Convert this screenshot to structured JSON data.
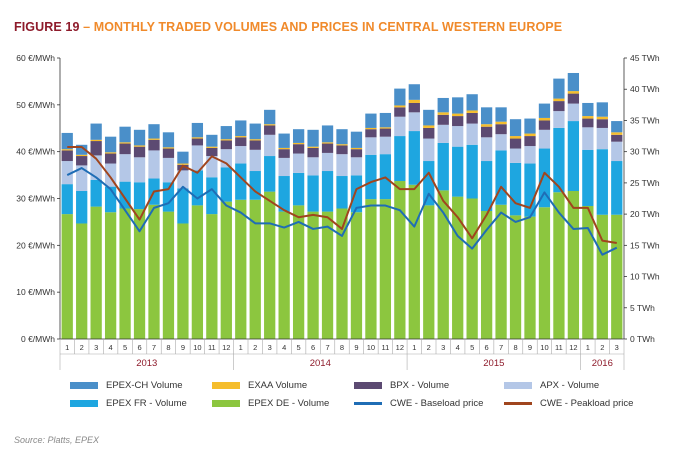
{
  "title": {
    "figure_label": "FIGURE 19",
    "separator": " – ",
    "text": "MONTHLY TRADED VOLUMES AND PRICES IN CENTRAL WESTERN EUROPE"
  },
  "source": "Source: Platts, EPEX",
  "chart_data": {
    "type": "bar",
    "stacked": true,
    "title": "",
    "months": [
      "1",
      "2",
      "3",
      "4",
      "5",
      "6",
      "7",
      "8",
      "9",
      "10",
      "11",
      "12",
      "1",
      "2",
      "3",
      "4",
      "5",
      "6",
      "7",
      "8",
      "9",
      "10",
      "11",
      "12",
      "1",
      "2",
      "3",
      "4",
      "5",
      "6",
      "7",
      "8",
      "9",
      "10",
      "11",
      "12",
      "1",
      "2",
      "3"
    ],
    "years": [
      {
        "label": "2013",
        "start": 0,
        "count": 12
      },
      {
        "label": "2014",
        "start": 12,
        "count": 12
      },
      {
        "label": "2015",
        "start": 24,
        "count": 12
      },
      {
        "label": "2016",
        "start": 36,
        "count": 3
      }
    ],
    "left_axis": {
      "min": 0,
      "max": 60,
      "step": 10,
      "tick_labels": [
        "0 €/MWh",
        "10 €/MWh",
        "20 €/MWh",
        "30 €/MWh",
        "40 €/MWh",
        "50 €/MWh",
        "60 €/MWh"
      ]
    },
    "right_axis": {
      "min": 0,
      "max": 45,
      "step": 5,
      "tick_labels": [
        "0 TWh",
        "5 TWh",
        "10 TWh",
        "15 TWh",
        "20 TWh",
        "25 TWh",
        "30 TWh",
        "35 TWh",
        "40 TWh",
        "45 TWh"
      ]
    },
    "grid": false,
    "legend_position": "bottom",
    "volume_series": [
      {
        "name": "EPEX DE - Volume",
        "color": "#8cc63f",
        "values": [
          20,
          18.5,
          21.2,
          20.3,
          20.9,
          20.8,
          21.5,
          20.4,
          18.5,
          21.4,
          20,
          22,
          22.3,
          22.3,
          23.6,
          20.4,
          21.4,
          20.4,
          20.4,
          20.9,
          20.3,
          22.4,
          22.4,
          25.3,
          24.7,
          21.4,
          23.8,
          22.8,
          22.5,
          20.5,
          21.5,
          19.8,
          19.6,
          21.1,
          23.5,
          23.7,
          21.3,
          19.9,
          19.9
        ]
      },
      {
        "name": "EPEX FR - Volume",
        "color": "#1ea6e0",
        "values": [
          4.8,
          5.2,
          4.3,
          4.1,
          4.3,
          4.3,
          4.2,
          4.7,
          5.6,
          5.6,
          5.9,
          5.5,
          5.8,
          4.6,
          5.7,
          5.7,
          5.2,
          5.8,
          6.5,
          5.2,
          5.9,
          7.1,
          7.2,
          7.2,
          8.6,
          7.1,
          7.6,
          8,
          8.6,
          8,
          8.7,
          8.4,
          8.5,
          9.4,
          10.3,
          11.2,
          9,
          10.5,
          8.6
        ]
      },
      {
        "name": "APX - Volume",
        "color": "#b4c7e7",
        "values": [
          3.7,
          4.1,
          3.9,
          3.7,
          4.4,
          4,
          4.5,
          3.9,
          2.9,
          4,
          3.4,
          2.9,
          2.8,
          3.4,
          3.4,
          2.9,
          3.1,
          2.9,
          2.9,
          3.5,
          2.9,
          2.8,
          2.8,
          3.1,
          3,
          3.6,
          2.9,
          3.3,
          3.4,
          3.8,
          2.6,
          2.3,
          2.8,
          3,
          2.7,
          2.8,
          3.6,
          3.4,
          3.1
        ]
      },
      {
        "name": "BPX - Volume",
        "color": "#5c4a72",
        "values": [
          1.7,
          1.5,
          2.3,
          1.6,
          1.7,
          1.7,
          1.7,
          1.5,
          0.9,
          1.1,
          1.3,
          1.4,
          1.4,
          1.5,
          1.5,
          1.4,
          1.5,
          1.5,
          1.5,
          1.4,
          1.3,
          1.3,
          1.3,
          1.5,
          1.5,
          1.7,
          1.6,
          1.6,
          1.7,
          1.7,
          1.6,
          1.6,
          1.6,
          1.5,
          1.6,
          1.6,
          1.4,
          1.4,
          1.1
        ]
      },
      {
        "name": "EXAA Volume",
        "color": "#f5bd2c",
        "values": [
          0.2,
          0.2,
          0.2,
          0.2,
          0.2,
          0.2,
          0.2,
          0.2,
          0.2,
          0.2,
          0.2,
          0.2,
          0.2,
          0.2,
          0.2,
          0.2,
          0.2,
          0.2,
          0.2,
          0.2,
          0.2,
          0.2,
          0.2,
          0.3,
          0.5,
          0.4,
          0.4,
          0.4,
          0.4,
          0.4,
          0.4,
          0.4,
          0.4,
          0.4,
          0.4,
          0.4,
          0.4,
          0.4,
          0.4
        ]
      },
      {
        "name": "EPEX-CH Volume",
        "color": "#4a8fc9",
        "values": [
          2.6,
          1.6,
          2.6,
          2.5,
          2.5,
          2.5,
          2.3,
          2.4,
          1.9,
          2.3,
          1.9,
          2.1,
          2.5,
          2.5,
          2.3,
          2.3,
          2.2,
          2.7,
          2.7,
          2.4,
          2.6,
          2.3,
          2.3,
          2.7,
          2.5,
          2.5,
          2.3,
          2.6,
          2.6,
          2.7,
          2.3,
          2.7,
          2.4,
          2.3,
          3.2,
          2.9,
          2.1,
          2.3,
          1.8
        ]
      }
    ],
    "price_series": [
      {
        "name": "CWE - Baseload price",
        "color": "#1f6db5",
        "values": [
          35,
          36.5,
          34.5,
          32,
          27.5,
          23,
          28,
          29,
          32.5,
          30,
          32,
          28.5,
          27,
          24.7,
          24.7,
          23.8,
          25,
          23.5,
          24,
          22,
          28,
          28.5,
          28.5,
          27.5,
          24,
          31,
          27,
          22,
          19.3,
          23.3,
          27,
          25,
          26,
          31.3,
          27,
          23.5,
          23.7,
          18,
          19.5
        ]
      },
      {
        "name": "CWE - Peakload price",
        "color": "#a0451e",
        "values": [
          41,
          41,
          38.5,
          34.5,
          30,
          25.5,
          31.5,
          32,
          37,
          35.5,
          39,
          37.5,
          34.5,
          31.5,
          29.5,
          27.5,
          26,
          26.5,
          26,
          23.5,
          32,
          33.5,
          34.5,
          32,
          32,
          35.5,
          29.5,
          26,
          21.5,
          26.5,
          32.5,
          29,
          28,
          35.5,
          32.5,
          28,
          28,
          21,
          20.5
        ]
      }
    ],
    "legend_items": [
      {
        "name": "EPEX-CH Volume",
        "kind": "box",
        "color": "#4a8fc9"
      },
      {
        "name": "EXAA Volume",
        "kind": "box",
        "color": "#f5bd2c"
      },
      {
        "name": "BPX - Volume",
        "kind": "box",
        "color": "#5c4a72"
      },
      {
        "name": "APX - Volume",
        "kind": "box",
        "color": "#b4c7e7"
      },
      {
        "name": "EPEX FR - Volume",
        "kind": "box",
        "color": "#1ea6e0"
      },
      {
        "name": "EPEX DE - Volume",
        "kind": "box",
        "color": "#8cc63f"
      },
      {
        "name": "CWE - Baseload price",
        "kind": "line",
        "color": "#1f6db5"
      },
      {
        "name": "CWE - Peakload price",
        "kind": "line",
        "color": "#a0451e"
      }
    ]
  }
}
